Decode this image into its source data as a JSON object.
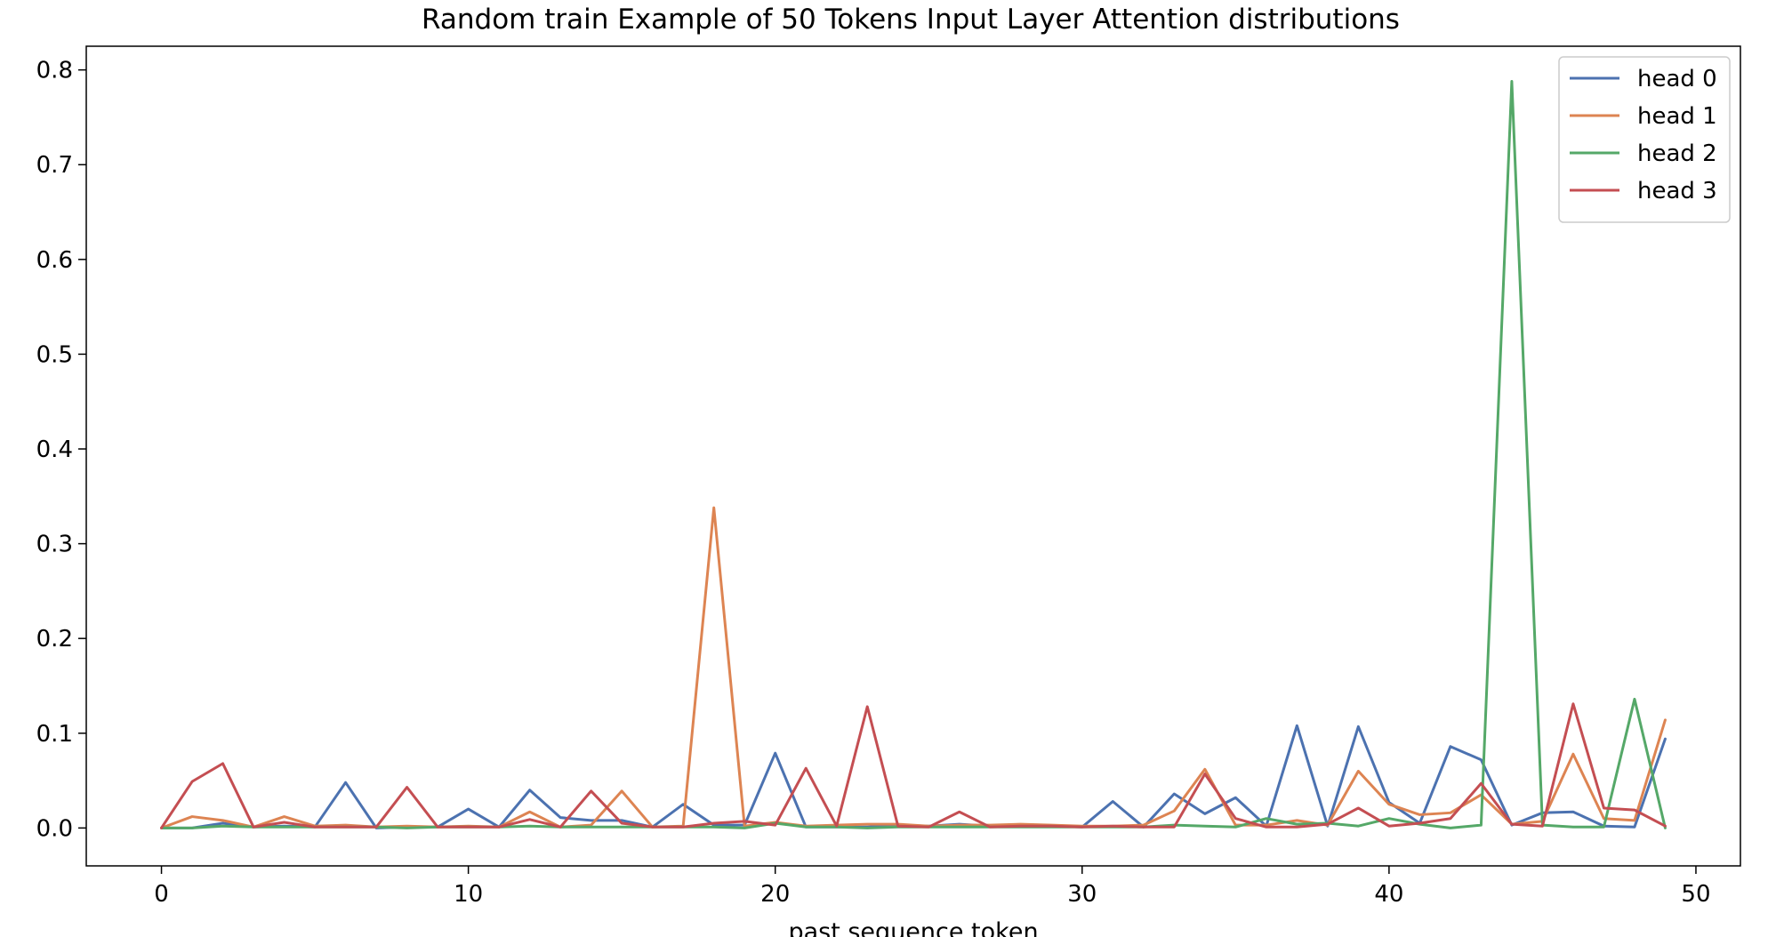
{
  "chart_data": {
    "type": "line",
    "title": "Random train Example of 50 Tokens Input Layer Attention distributions",
    "xlabel": "past sequence token",
    "ylabel": "",
    "xlim": [
      -2.45,
      51.45
    ],
    "ylim": [
      -0.04,
      0.825
    ],
    "x_ticks": [
      0,
      10,
      20,
      30,
      40,
      50
    ],
    "y_ticks": [
      0.0,
      0.1,
      0.2,
      0.3,
      0.4,
      0.5,
      0.6,
      0.7,
      0.8
    ],
    "grid": false,
    "legend_position": "upper right",
    "x": [
      0,
      1,
      2,
      3,
      4,
      5,
      6,
      7,
      8,
      9,
      10,
      11,
      12,
      13,
      14,
      15,
      16,
      17,
      18,
      19,
      20,
      21,
      22,
      23,
      24,
      25,
      26,
      27,
      28,
      29,
      30,
      31,
      32,
      33,
      34,
      35,
      36,
      37,
      38,
      39,
      40,
      41,
      42,
      43,
      44,
      45,
      46,
      47,
      48,
      49
    ],
    "series": [
      {
        "name": "head 0",
        "color": "#4c72b0",
        "values": [
          0.0,
          0.0,
          0.005,
          0.001,
          0.002,
          0.001,
          0.048,
          0.0,
          0.001,
          0.001,
          0.02,
          0.001,
          0.04,
          0.011,
          0.008,
          0.008,
          0.001,
          0.025,
          0.003,
          0.003,
          0.079,
          0.001,
          0.001,
          0.001,
          0.003,
          0.002,
          0.004,
          0.002,
          0.003,
          0.002,
          0.001,
          0.028,
          0.001,
          0.036,
          0.015,
          0.032,
          0.002,
          0.108,
          0.002,
          0.107,
          0.027,
          0.005,
          0.086,
          0.072,
          0.003,
          0.016,
          0.017,
          0.002,
          0.001,
          0.094
        ]
      },
      {
        "name": "head 1",
        "color": "#dd8452",
        "values": [
          0.0,
          0.012,
          0.008,
          0.001,
          0.012,
          0.002,
          0.003,
          0.001,
          0.002,
          0.001,
          0.002,
          0.001,
          0.017,
          0.001,
          0.003,
          0.039,
          0.001,
          0.002,
          0.338,
          0.002,
          0.006,
          0.002,
          0.003,
          0.004,
          0.004,
          0.002,
          0.003,
          0.003,
          0.004,
          0.003,
          0.002,
          0.002,
          0.003,
          0.018,
          0.062,
          0.003,
          0.003,
          0.008,
          0.003,
          0.06,
          0.025,
          0.014,
          0.016,
          0.035,
          0.004,
          0.007,
          0.078,
          0.01,
          0.008,
          0.114
        ]
      },
      {
        "name": "head 2",
        "color": "#55a868",
        "values": [
          0.0,
          0.0,
          0.002,
          0.001,
          0.001,
          0.001,
          0.001,
          0.001,
          0.0,
          0.001,
          0.001,
          0.001,
          0.002,
          0.001,
          0.001,
          0.001,
          0.001,
          0.001,
          0.001,
          0.0,
          0.005,
          0.001,
          0.001,
          0.0,
          0.001,
          0.001,
          0.001,
          0.001,
          0.001,
          0.001,
          0.001,
          0.001,
          0.001,
          0.003,
          0.002,
          0.001,
          0.01,
          0.004,
          0.005,
          0.002,
          0.01,
          0.004,
          0.0,
          0.003,
          0.788,
          0.003,
          0.001,
          0.001,
          0.136,
          0.0
        ]
      },
      {
        "name": "head 3",
        "color": "#c44e52",
        "values": [
          0.0,
          0.049,
          0.068,
          0.001,
          0.006,
          0.001,
          0.001,
          0.001,
          0.043,
          0.001,
          0.001,
          0.001,
          0.009,
          0.001,
          0.039,
          0.005,
          0.001,
          0.001,
          0.005,
          0.007,
          0.003,
          0.063,
          0.002,
          0.128,
          0.002,
          0.001,
          0.017,
          0.001,
          0.002,
          0.002,
          0.001,
          0.002,
          0.001,
          0.001,
          0.057,
          0.01,
          0.001,
          0.001,
          0.004,
          0.021,
          0.002,
          0.005,
          0.01,
          0.047,
          0.004,
          0.002,
          0.131,
          0.021,
          0.019,
          0.002
        ]
      }
    ]
  }
}
